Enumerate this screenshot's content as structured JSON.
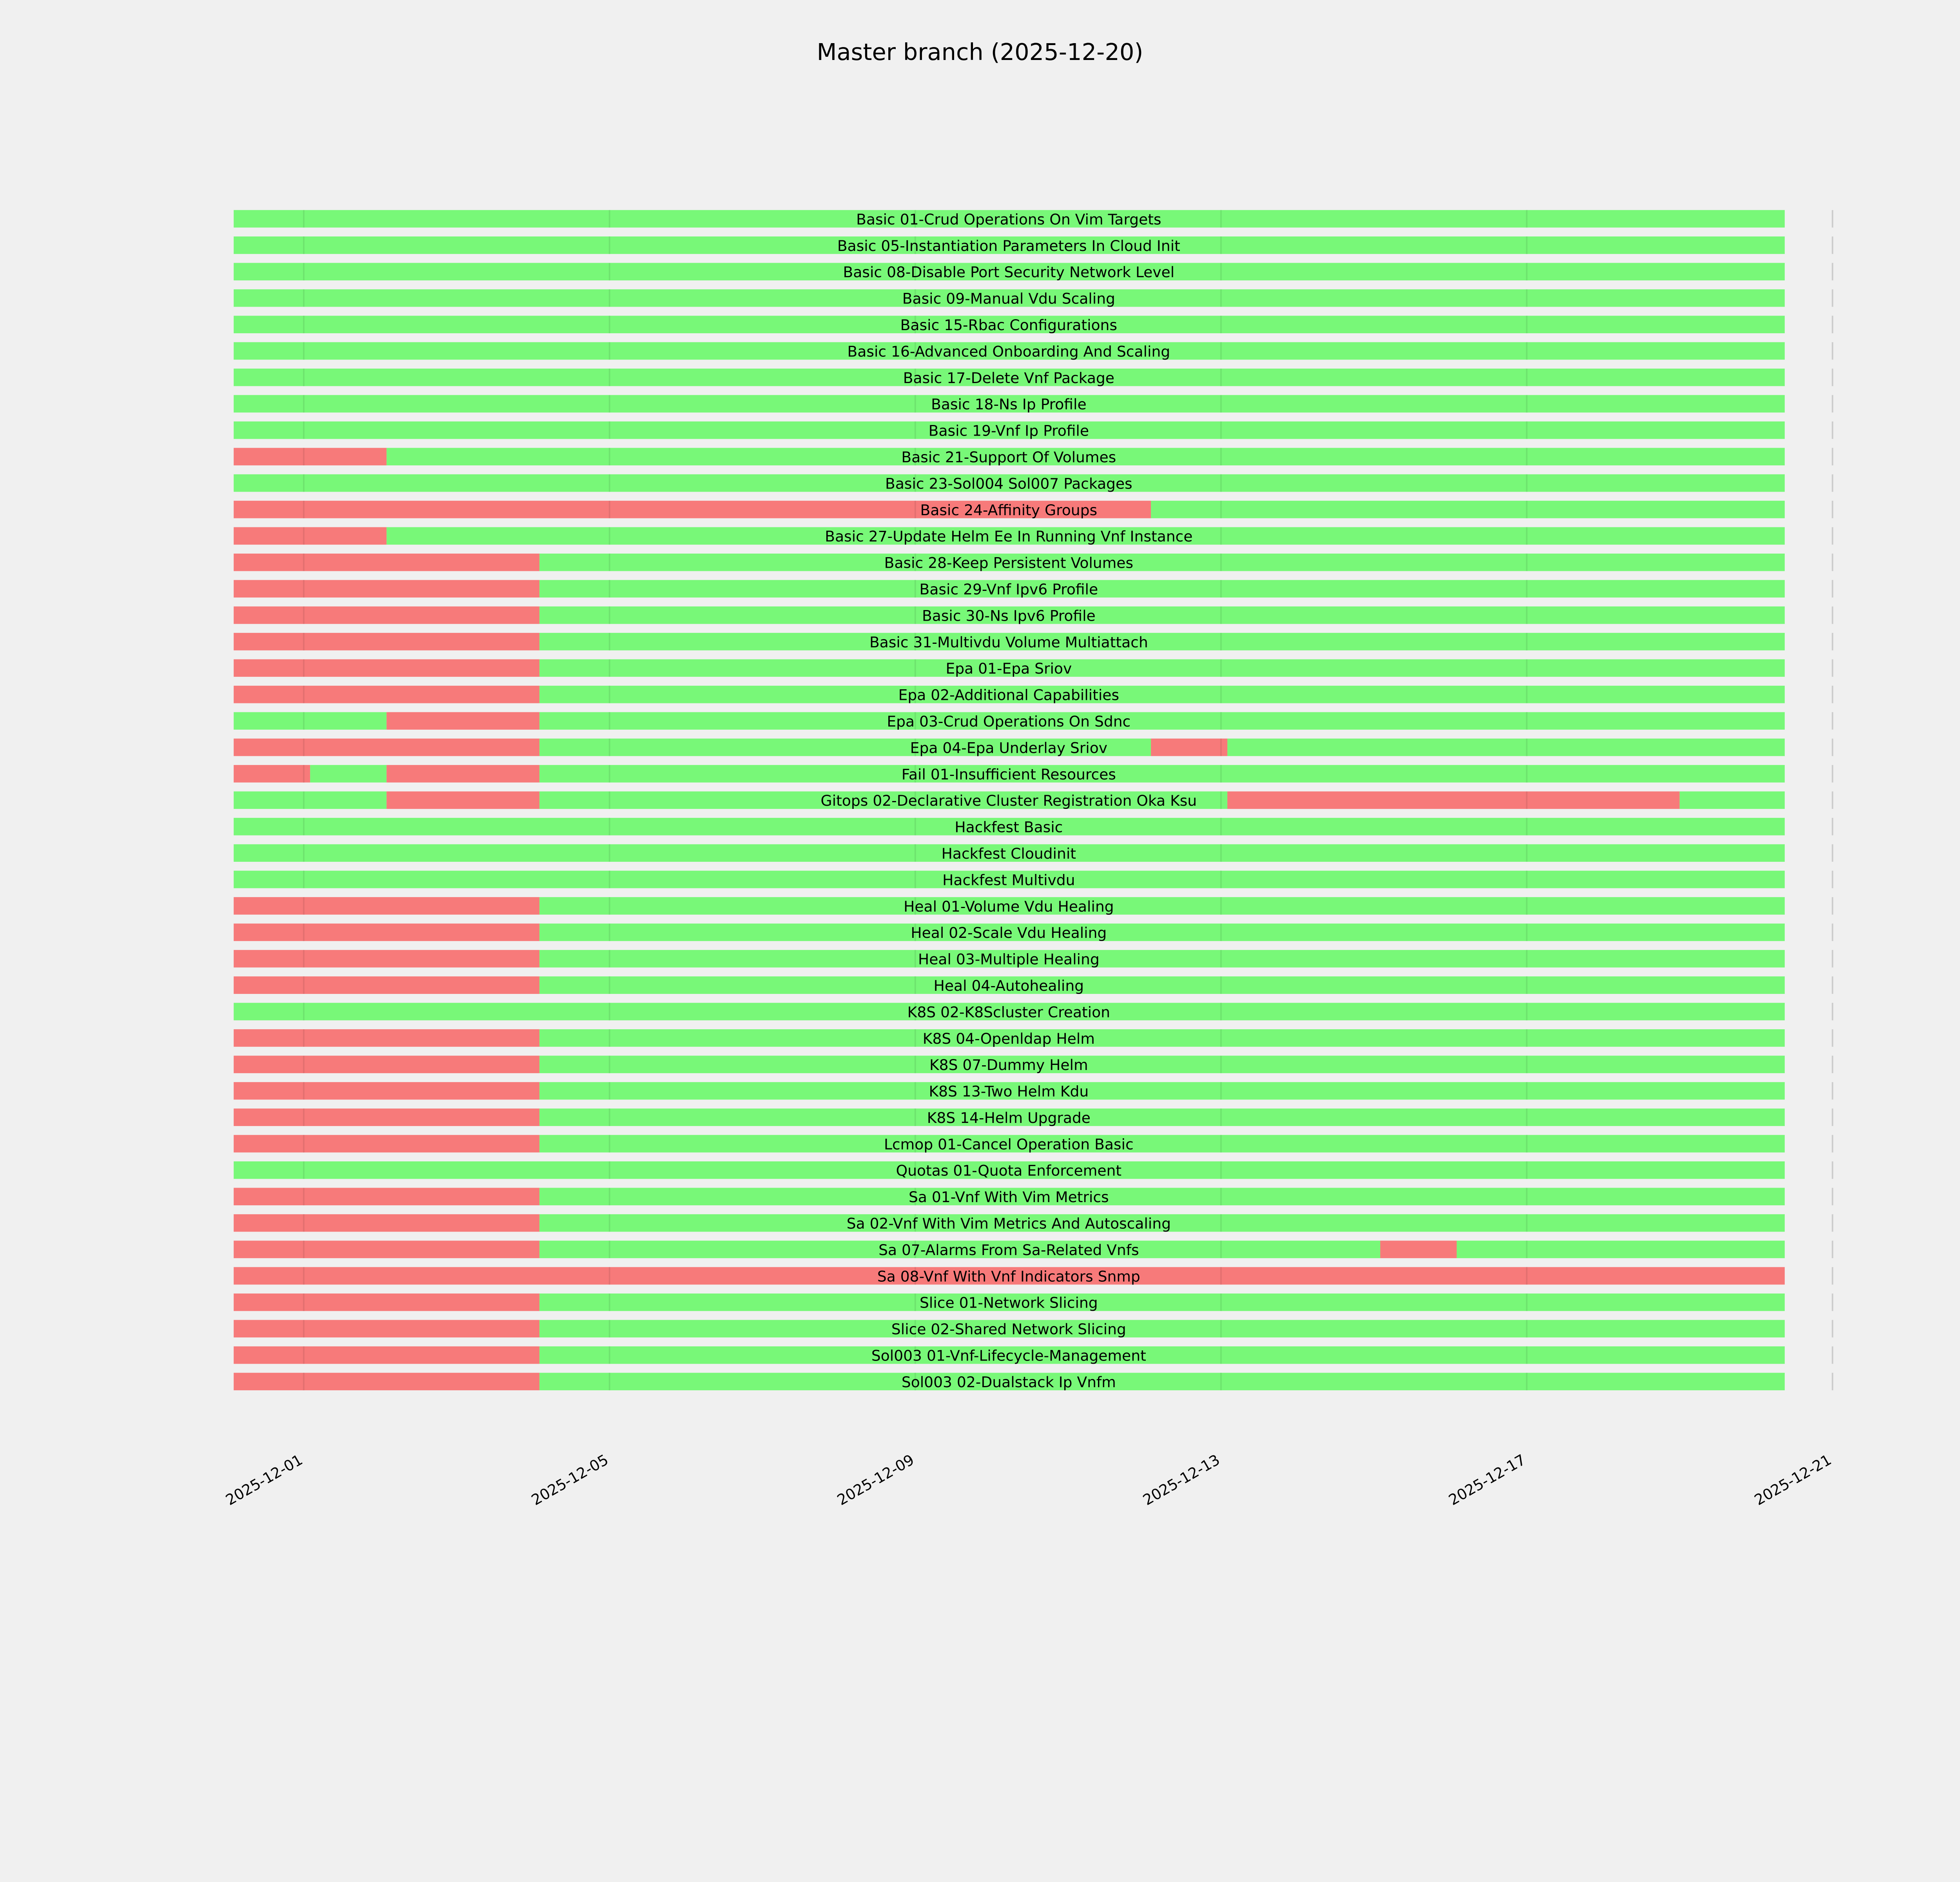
{
  "chart_data": {
    "type": "timeline",
    "title": "Master branch (2025-12-20)",
    "xlabel": "",
    "ylabel": "",
    "xlim": [
      "2025-11-30T02:00",
      "2025-12-21T00:00"
    ],
    "x_ticks": [
      "2025-12-01",
      "2025-12-05",
      "2025-12-09",
      "2025-12-13",
      "2025-12-17",
      "2025-12-21"
    ],
    "colors": {
      "pass": "#78f878",
      "fail": "#f77a7a",
      "background": "#f0f0f0"
    },
    "legend": "none",
    "run_times": {
      "S": "2025-11-30T02:00",
      "A": "2025-12-01T02:00",
      "B": "2025-12-02T02:00",
      "C": "2025-12-04T02:00",
      "D": "2025-12-12T02:00",
      "E": "2025-12-13T02:00",
      "F": "2025-12-15T02:00",
      "G": "2025-12-16T02:00",
      "H": "2025-12-19T00:00",
      "END": "2025-12-20T09:00"
    },
    "rows": [
      {
        "name": "Basic 01-Crud Operations On Vim Targets",
        "segments": [
          [
            "S",
            "END",
            "pass"
          ]
        ]
      },
      {
        "name": "Basic 05-Instantiation Parameters In Cloud Init",
        "segments": [
          [
            "S",
            "END",
            "pass"
          ]
        ]
      },
      {
        "name": "Basic 08-Disable Port Security Network Level",
        "segments": [
          [
            "S",
            "END",
            "pass"
          ]
        ]
      },
      {
        "name": "Basic 09-Manual Vdu Scaling",
        "segments": [
          [
            "S",
            "END",
            "pass"
          ]
        ]
      },
      {
        "name": "Basic 15-Rbac Configurations",
        "segments": [
          [
            "S",
            "END",
            "pass"
          ]
        ]
      },
      {
        "name": "Basic 16-Advanced Onboarding And Scaling",
        "segments": [
          [
            "S",
            "END",
            "pass"
          ]
        ]
      },
      {
        "name": "Basic 17-Delete Vnf Package",
        "segments": [
          [
            "S",
            "END",
            "pass"
          ]
        ]
      },
      {
        "name": "Basic 18-Ns Ip Profile",
        "segments": [
          [
            "S",
            "END",
            "pass"
          ]
        ]
      },
      {
        "name": "Basic 19-Vnf Ip Profile",
        "segments": [
          [
            "S",
            "END",
            "pass"
          ]
        ]
      },
      {
        "name": "Basic 21-Support Of Volumes",
        "segments": [
          [
            "S",
            "B",
            "fail"
          ],
          [
            "B",
            "END",
            "pass"
          ]
        ]
      },
      {
        "name": "Basic 23-Sol004 Sol007 Packages",
        "segments": [
          [
            "S",
            "END",
            "pass"
          ]
        ]
      },
      {
        "name": "Basic 24-Affinity Groups",
        "segments": [
          [
            "S",
            "D",
            "fail"
          ],
          [
            "D",
            "END",
            "pass"
          ]
        ]
      },
      {
        "name": "Basic 27-Update Helm Ee In Running Vnf Instance",
        "segments": [
          [
            "S",
            "B",
            "fail"
          ],
          [
            "B",
            "END",
            "pass"
          ]
        ]
      },
      {
        "name": "Basic 28-Keep Persistent Volumes",
        "segments": [
          [
            "S",
            "C",
            "fail"
          ],
          [
            "C",
            "END",
            "pass"
          ]
        ]
      },
      {
        "name": "Basic 29-Vnf Ipv6 Profile",
        "segments": [
          [
            "S",
            "C",
            "fail"
          ],
          [
            "C",
            "END",
            "pass"
          ]
        ]
      },
      {
        "name": "Basic 30-Ns Ipv6 Profile",
        "segments": [
          [
            "S",
            "C",
            "fail"
          ],
          [
            "C",
            "END",
            "pass"
          ]
        ]
      },
      {
        "name": "Basic 31-Multivdu Volume Multiattach",
        "segments": [
          [
            "S",
            "C",
            "fail"
          ],
          [
            "C",
            "END",
            "pass"
          ]
        ]
      },
      {
        "name": "Epa 01-Epa Sriov",
        "segments": [
          [
            "S",
            "C",
            "fail"
          ],
          [
            "C",
            "END",
            "pass"
          ]
        ]
      },
      {
        "name": "Epa 02-Additional Capabilities",
        "segments": [
          [
            "S",
            "C",
            "fail"
          ],
          [
            "C",
            "END",
            "pass"
          ]
        ]
      },
      {
        "name": "Epa 03-Crud Operations On Sdnc",
        "segments": [
          [
            "S",
            "B",
            "pass"
          ],
          [
            "B",
            "C",
            "fail"
          ],
          [
            "C",
            "END",
            "pass"
          ]
        ]
      },
      {
        "name": "Epa 04-Epa Underlay Sriov",
        "segments": [
          [
            "S",
            "C",
            "fail"
          ],
          [
            "C",
            "D",
            "pass"
          ],
          [
            "D",
            "E",
            "fail"
          ],
          [
            "E",
            "END",
            "pass"
          ]
        ]
      },
      {
        "name": "Fail 01-Insufficient Resources",
        "segments": [
          [
            "S",
            "A",
            "fail"
          ],
          [
            "A",
            "B",
            "pass"
          ],
          [
            "B",
            "C",
            "fail"
          ],
          [
            "C",
            "END",
            "pass"
          ]
        ]
      },
      {
        "name": "Gitops 02-Declarative Cluster Registration Oka Ksu",
        "segments": [
          [
            "S",
            "B",
            "pass"
          ],
          [
            "B",
            "C",
            "fail"
          ],
          [
            "C",
            "E",
            "pass"
          ],
          [
            "E",
            "H",
            "fail"
          ],
          [
            "H",
            "END",
            "pass"
          ]
        ]
      },
      {
        "name": "Hackfest Basic",
        "segments": [
          [
            "S",
            "END",
            "pass"
          ]
        ]
      },
      {
        "name": "Hackfest Cloudinit",
        "segments": [
          [
            "S",
            "END",
            "pass"
          ]
        ]
      },
      {
        "name": "Hackfest Multivdu",
        "segments": [
          [
            "S",
            "END",
            "pass"
          ]
        ]
      },
      {
        "name": "Heal 01-Volume Vdu Healing",
        "segments": [
          [
            "S",
            "C",
            "fail"
          ],
          [
            "C",
            "END",
            "pass"
          ]
        ]
      },
      {
        "name": "Heal 02-Scale Vdu Healing",
        "segments": [
          [
            "S",
            "C",
            "fail"
          ],
          [
            "C",
            "END",
            "pass"
          ]
        ]
      },
      {
        "name": "Heal 03-Multiple Healing",
        "segments": [
          [
            "S",
            "C",
            "fail"
          ],
          [
            "C",
            "END",
            "pass"
          ]
        ]
      },
      {
        "name": "Heal 04-Autohealing",
        "segments": [
          [
            "S",
            "C",
            "fail"
          ],
          [
            "C",
            "END",
            "pass"
          ]
        ]
      },
      {
        "name": "K8S 02-K8Scluster Creation",
        "segments": [
          [
            "S",
            "END",
            "pass"
          ]
        ]
      },
      {
        "name": "K8S 04-Openldap Helm",
        "segments": [
          [
            "S",
            "C",
            "fail"
          ],
          [
            "C",
            "END",
            "pass"
          ]
        ]
      },
      {
        "name": "K8S 07-Dummy Helm",
        "segments": [
          [
            "S",
            "C",
            "fail"
          ],
          [
            "C",
            "END",
            "pass"
          ]
        ]
      },
      {
        "name": "K8S 13-Two Helm Kdu",
        "segments": [
          [
            "S",
            "C",
            "fail"
          ],
          [
            "C",
            "END",
            "pass"
          ]
        ]
      },
      {
        "name": "K8S 14-Helm Upgrade",
        "segments": [
          [
            "S",
            "C",
            "fail"
          ],
          [
            "C",
            "END",
            "pass"
          ]
        ]
      },
      {
        "name": "Lcmop 01-Cancel Operation Basic",
        "segments": [
          [
            "S",
            "C",
            "fail"
          ],
          [
            "C",
            "END",
            "pass"
          ]
        ]
      },
      {
        "name": "Quotas 01-Quota Enforcement",
        "segments": [
          [
            "S",
            "END",
            "pass"
          ]
        ]
      },
      {
        "name": "Sa 01-Vnf With Vim Metrics",
        "segments": [
          [
            "S",
            "C",
            "fail"
          ],
          [
            "C",
            "END",
            "pass"
          ]
        ]
      },
      {
        "name": "Sa 02-Vnf With Vim Metrics And Autoscaling",
        "segments": [
          [
            "S",
            "C",
            "fail"
          ],
          [
            "C",
            "END",
            "pass"
          ]
        ]
      },
      {
        "name": "Sa 07-Alarms From Sa-Related Vnfs",
        "segments": [
          [
            "S",
            "C",
            "fail"
          ],
          [
            "C",
            "F",
            "pass"
          ],
          [
            "F",
            "G",
            "fail"
          ],
          [
            "G",
            "END",
            "pass"
          ]
        ]
      },
      {
        "name": "Sa 08-Vnf With Vnf Indicators Snmp",
        "segments": [
          [
            "S",
            "END",
            "fail"
          ]
        ]
      },
      {
        "name": "Slice 01-Network Slicing",
        "segments": [
          [
            "S",
            "C",
            "fail"
          ],
          [
            "C",
            "END",
            "pass"
          ]
        ]
      },
      {
        "name": "Slice 02-Shared Network Slicing",
        "segments": [
          [
            "S",
            "C",
            "fail"
          ],
          [
            "C",
            "END",
            "pass"
          ]
        ]
      },
      {
        "name": "Sol003 01-Vnf-Lifecycle-Management",
        "segments": [
          [
            "S",
            "C",
            "fail"
          ],
          [
            "C",
            "END",
            "pass"
          ]
        ]
      },
      {
        "name": "Sol003 02-Dualstack Ip Vnfm",
        "segments": [
          [
            "S",
            "C",
            "fail"
          ],
          [
            "C",
            "END",
            "pass"
          ]
        ]
      }
    ]
  }
}
